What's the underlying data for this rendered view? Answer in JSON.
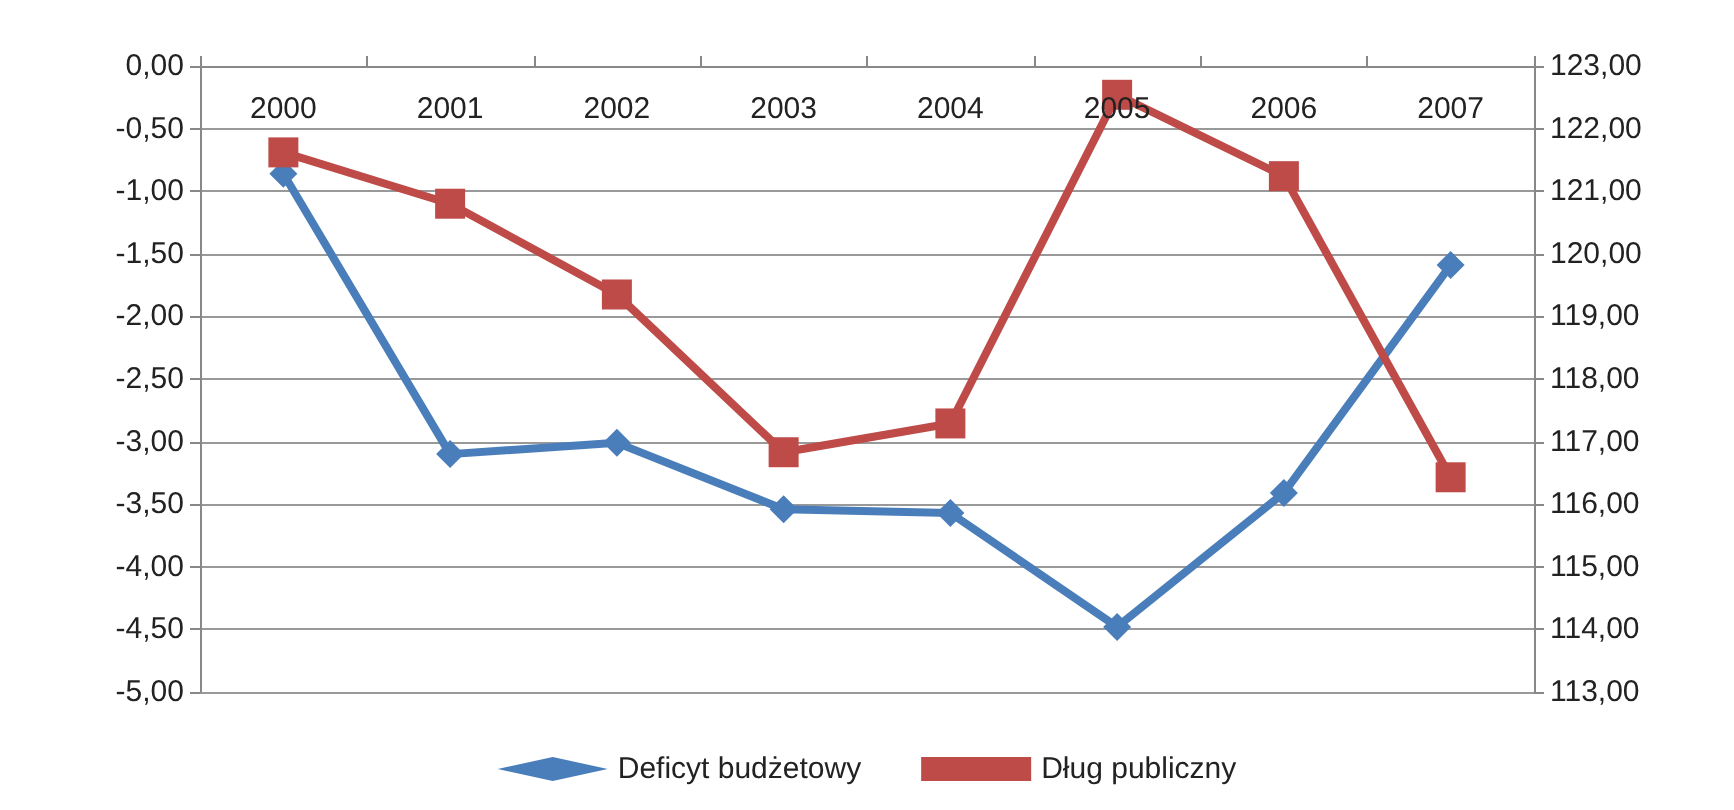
{
  "chart_data": {
    "type": "line",
    "categories": [
      "2000",
      "2001",
      "2002",
      "2003",
      "2004",
      "2005",
      "2006",
      "2007"
    ],
    "series": [
      {
        "name": "Deficyt budżetowy",
        "color": "#4a7ebb",
        "marker": "diamond",
        "values": [
          -0.86,
          -3.1,
          -3.01,
          -3.54,
          -3.57,
          -4.48,
          -3.41,
          -1.59
        ]
      },
      {
        "name": "Dług publiczny",
        "color": "#be4b48",
        "marker": "square",
        "axis": "y2",
        "values": [
          121.62,
          120.8,
          119.35,
          116.83,
          117.29,
          122.54,
          121.24,
          116.43
        ]
      }
    ],
    "ylim": [
      -5,
      0
    ],
    "yticks": [
      {
        "value": -5,
        "label": "-5,00"
      },
      {
        "value": -4.5,
        "label": "-4,50"
      },
      {
        "value": -4,
        "label": "-4,00"
      },
      {
        "value": -3.5,
        "label": "-3,50"
      },
      {
        "value": -3,
        "label": "-3,00"
      },
      {
        "value": -2.5,
        "label": "-2,50"
      },
      {
        "value": -2,
        "label": "-2,00"
      },
      {
        "value": -1.5,
        "label": "-1,50"
      },
      {
        "value": -1,
        "label": "-1,00"
      },
      {
        "value": -0.5,
        "label": "-0,50"
      },
      {
        "value": 0,
        "label": "0,00"
      }
    ],
    "y2lim": [
      113,
      123
    ],
    "y2ticks": [
      {
        "value": 113,
        "label": "113,00"
      },
      {
        "value": 114,
        "label": "114,00"
      },
      {
        "value": 115,
        "label": "115,00"
      },
      {
        "value": 116,
        "label": "116,00"
      },
      {
        "value": 117,
        "label": "117,00"
      },
      {
        "value": 118,
        "label": "118,00"
      },
      {
        "value": 119,
        "label": "119,00"
      },
      {
        "value": 120,
        "label": "120,00"
      },
      {
        "value": 121,
        "label": "121,00"
      },
      {
        "value": 122,
        "label": "122,00"
      },
      {
        "value": 123,
        "label": "123,00"
      }
    ],
    "grid": "y",
    "legend": "bottom"
  }
}
